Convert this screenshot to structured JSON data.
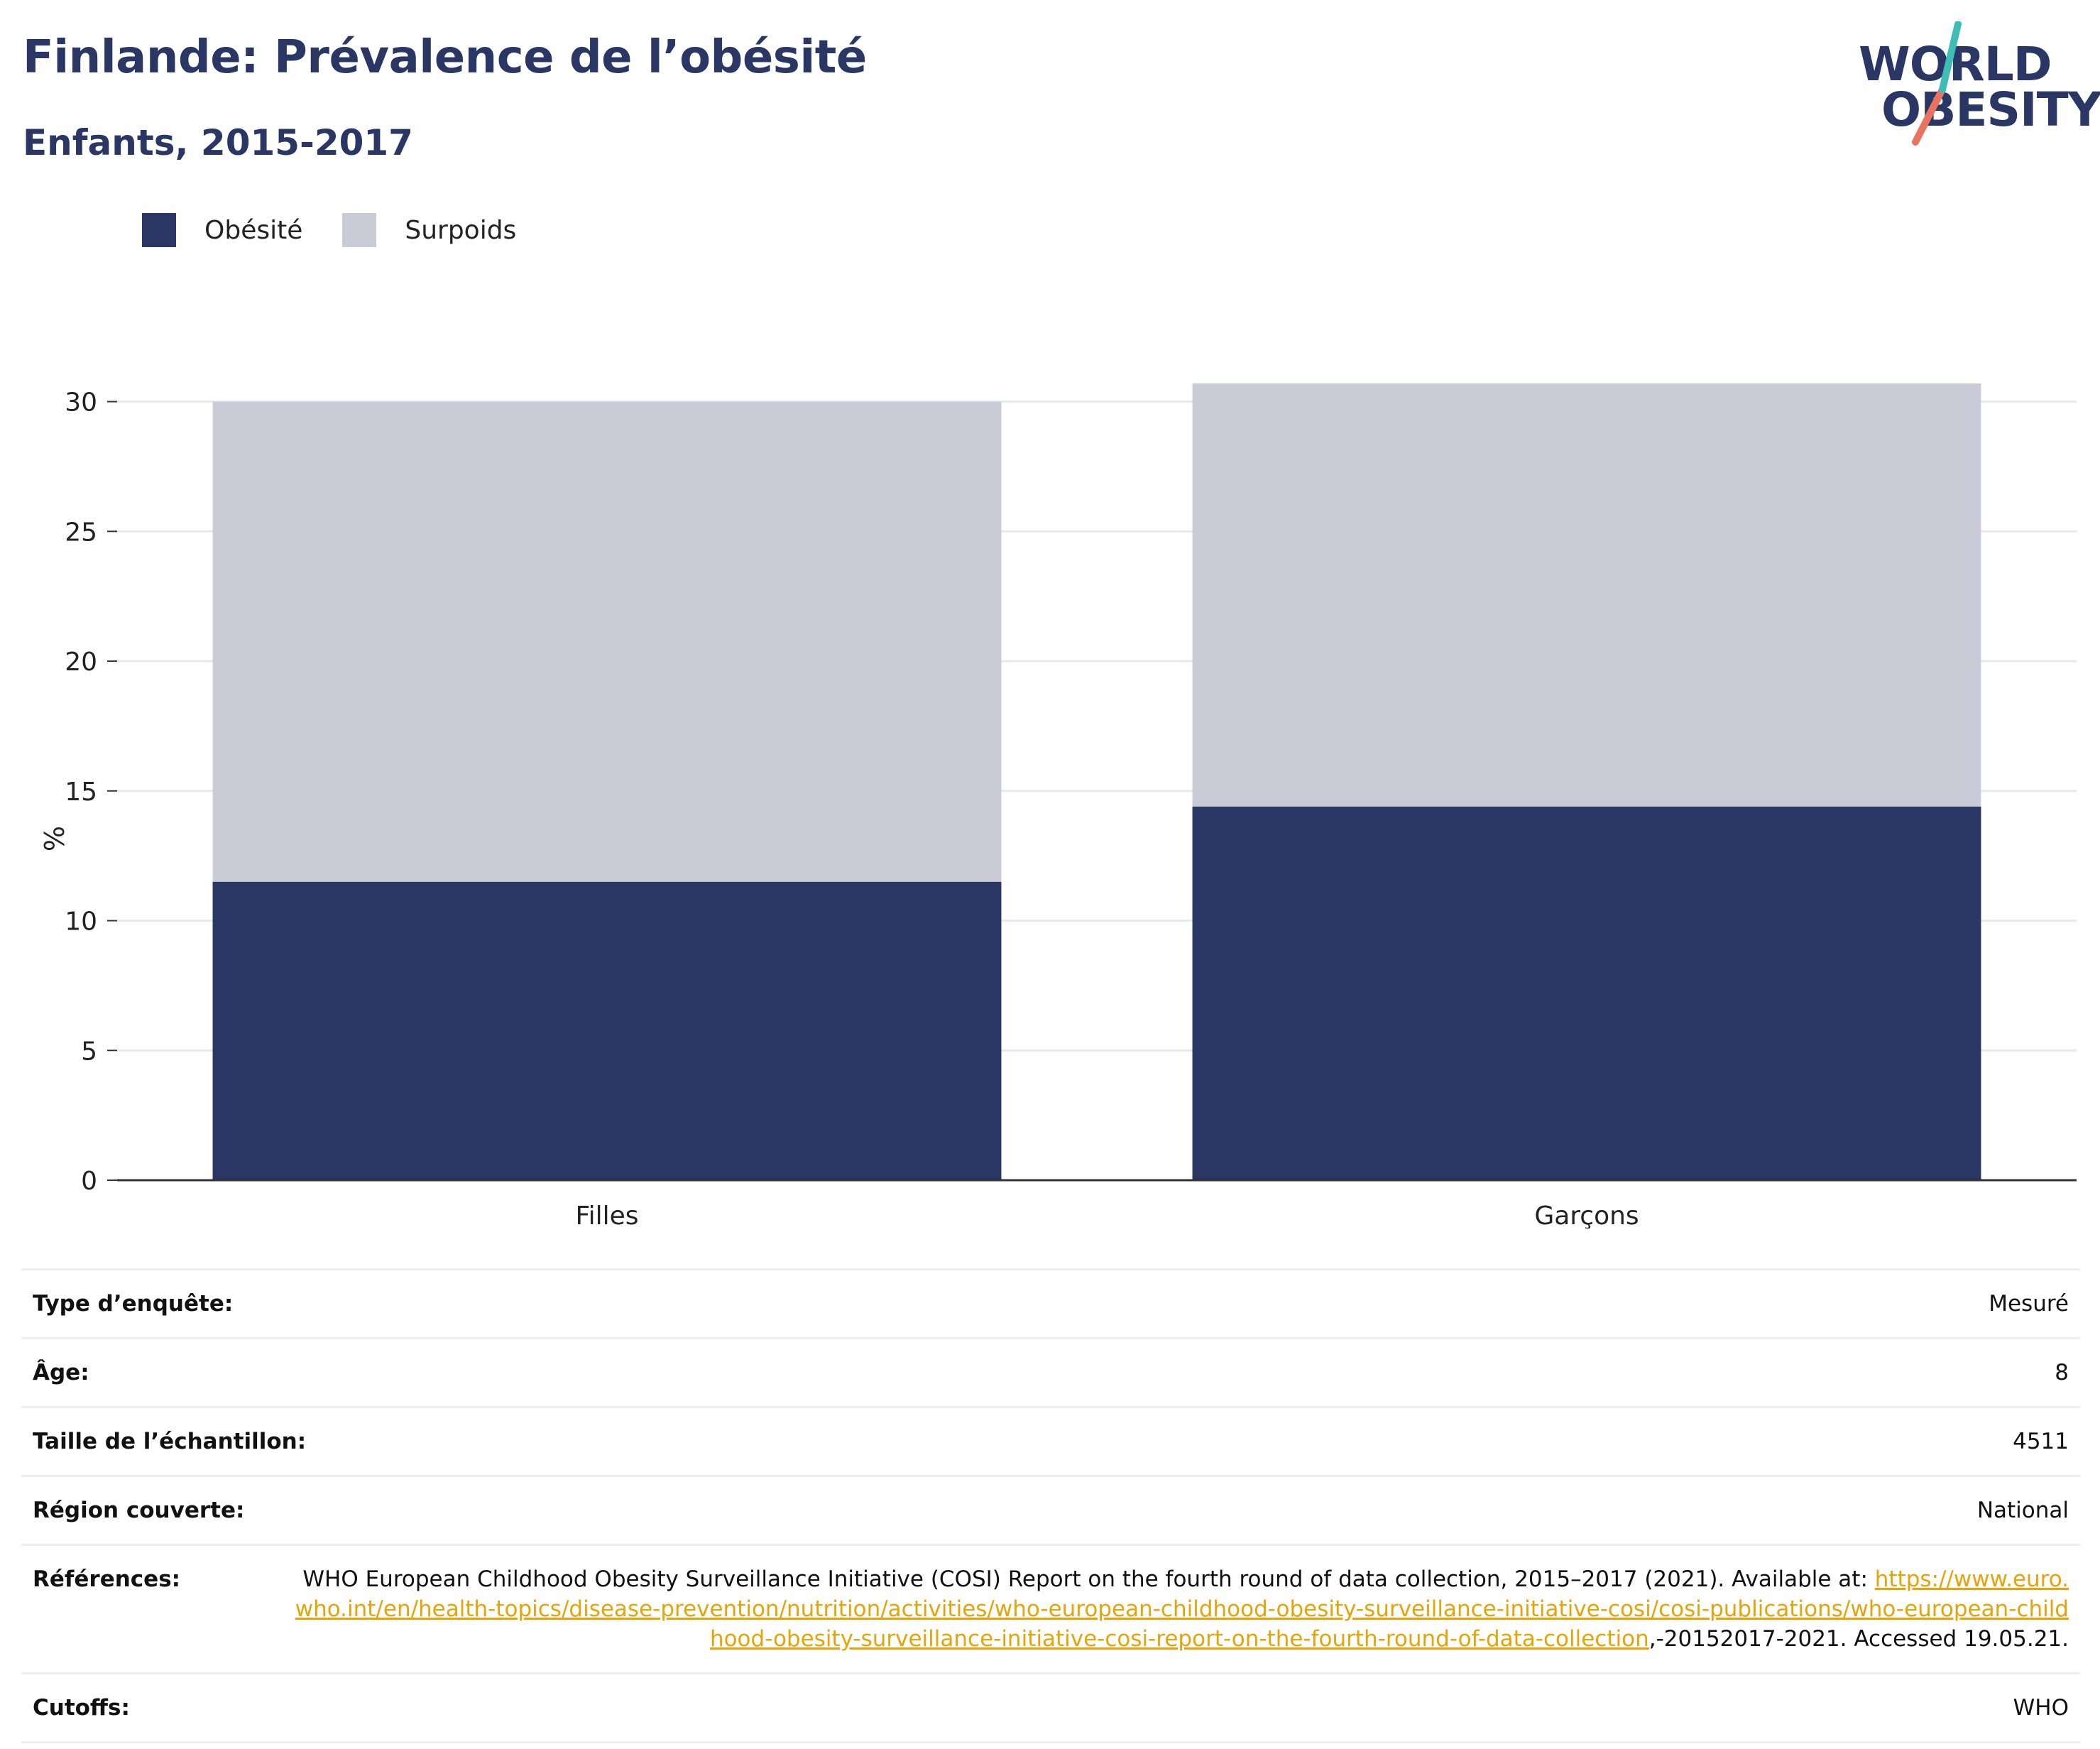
{
  "header": {
    "title": "Finlande: Prévalence de l’obésité",
    "subtitle": "Enfants, 2015-2017"
  },
  "logo": {
    "line1": "WORLD",
    "line2": "OBESITY"
  },
  "legend": [
    {
      "label": "Obésité",
      "color": "#2a3764"
    },
    {
      "label": "Surpoids",
      "color": "#c9ccd7"
    }
  ],
  "chart_data": {
    "type": "bar",
    "stacked": true,
    "categories": [
      "Filles",
      "Garçons"
    ],
    "series": [
      {
        "name": "Obésité",
        "values": [
          11.5,
          14.4
        ],
        "color": "#2a3764"
      },
      {
        "name": "Surpoids",
        "values": [
          18.5,
          16.3
        ],
        "color": "#c9ccd7"
      }
    ],
    "ylabel": "%",
    "ylim": [
      0,
      30.7
    ],
    "yticks": [
      0,
      5,
      10,
      15,
      20,
      25,
      30
    ],
    "grid": true,
    "legend_position": "top-left"
  },
  "meta": {
    "survey_type": {
      "label": "Type d’enquête:",
      "value": "Mesuré"
    },
    "age": {
      "label": "Âge:",
      "value": "8"
    },
    "sample_size": {
      "label": "Taille de l’échantillon:",
      "value": "4511"
    },
    "region": {
      "label": "Région couverte:",
      "value": "National"
    },
    "references": {
      "label": "Références:",
      "text_before": "WHO European Childhood Obesity Surveillance Initiative (COSI) Report on the fourth round of data collection, 2015–2017 (2021). Available at: ",
      "link": "https://www.euro.who.int/en/health-topics/disease-prevention/nutrition/activities/who-european-childhood-obesity-surveillance-initiative-cosi/cosi-publications/who-european-childhood-obesity-surveillance-initiative-cosi-report-on-the-fourth-round-of-data-collection",
      "text_after": ",-20152017-2021. Accessed 19.05.21."
    },
    "cutoffs": {
      "label": "Cutoffs:",
      "value": "WHO"
    }
  }
}
